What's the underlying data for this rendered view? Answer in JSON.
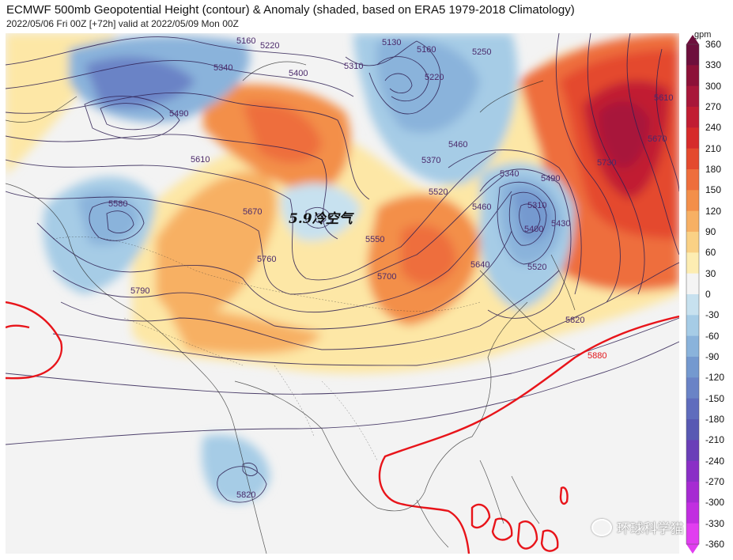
{
  "header": {
    "title": "ECMWF 500mb Geopotential Height (contour) & Anomaly (shaded, based on ERA5 1979-2018 Climatology)",
    "subtitle": "2022/05/06 Fri 00Z [+72h] valid at 2022/05/09 Mon 00Z"
  },
  "colorbar": {
    "unit": "gpm",
    "ticks": [
      "360",
      "330",
      "300",
      "270",
      "240",
      "210",
      "180",
      "150",
      "120",
      "90",
      "60",
      "30",
      "0",
      "-30",
      "-60",
      "-90",
      "-120",
      "-150",
      "-180",
      "-210",
      "-240",
      "-270",
      "-300",
      "-330",
      "-360"
    ],
    "colors": [
      "#6d0f3c",
      "#8c1138",
      "#a8173a",
      "#c11d33",
      "#d62b2b",
      "#e44a2e",
      "#ee6e3c",
      "#f38f4a",
      "#f7b064",
      "#fad185",
      "#fdedb2",
      "#f4f4f4",
      "#f4f4f4",
      "#c7e1ef",
      "#a6cce6",
      "#8ab3db",
      "#7499cf",
      "#6a83c6",
      "#5f6cbd",
      "#5859b3",
      "#6a3fb8",
      "#8a2fc6",
      "#a62bd2",
      "#c12ee0",
      "#e13ef0"
    ]
  },
  "annotation": {
    "text": "5.9冷空气"
  },
  "contour_labels": [
    {
      "text": "5160",
      "name": "contour-label-5160"
    },
    {
      "text": "5220",
      "name": "contour-label-5220-n"
    },
    {
      "text": "5340",
      "name": "contour-label-5340"
    },
    {
      "text": "5400",
      "name": "contour-label-5400-n"
    },
    {
      "text": "5310",
      "name": "contour-label-5310-n"
    },
    {
      "text": "5130",
      "name": "contour-label-5130"
    },
    {
      "text": "5160",
      "name": "contour-label-5160-e"
    },
    {
      "text": "5220",
      "name": "contour-label-5220-e"
    },
    {
      "text": "5250",
      "name": "contour-label-5250"
    },
    {
      "text": "5490",
      "name": "contour-label-5490"
    },
    {
      "text": "5610",
      "name": "contour-label-5610"
    },
    {
      "text": "5370",
      "name": "contour-label-5370"
    },
    {
      "text": "5460",
      "name": "contour-label-5460"
    },
    {
      "text": "5580",
      "name": "contour-label-5580"
    },
    {
      "text": "5670",
      "name": "contour-label-5670"
    },
    {
      "text": "5760",
      "name": "contour-label-5760"
    },
    {
      "text": "5550",
      "name": "contour-label-5550"
    },
    {
      "text": "5520",
      "name": "contour-label-5520"
    },
    {
      "text": "5700",
      "name": "contour-label-5700"
    },
    {
      "text": "5640",
      "name": "contour-label-5640"
    },
    {
      "text": "5790",
      "name": "contour-label-5790"
    },
    {
      "text": "5340",
      "name": "contour-label-5340-e"
    },
    {
      "text": "5310",
      "name": "contour-label-5310-e"
    },
    {
      "text": "5400",
      "name": "contour-label-5400-e"
    },
    {
      "text": "5520",
      "name": "contour-label-5520-e"
    },
    {
      "text": "5460",
      "name": "contour-label-5460-e"
    },
    {
      "text": "5430",
      "name": "contour-label-5430"
    },
    {
      "text": "5490",
      "name": "contour-label-5490-e"
    },
    {
      "text": "5730",
      "name": "contour-label-5730"
    },
    {
      "text": "5670",
      "name": "contour-label-5670-e"
    },
    {
      "text": "5610",
      "name": "contour-label-5610-e"
    },
    {
      "text": "5820",
      "name": "contour-label-5820"
    },
    {
      "text": "5880",
      "name": "contour-label-5880"
    },
    {
      "text": "5820",
      "name": "contour-label-5820-s"
    }
  ],
  "watermark": {
    "text": "环球科学猫",
    "icon": "wechat-icon"
  }
}
